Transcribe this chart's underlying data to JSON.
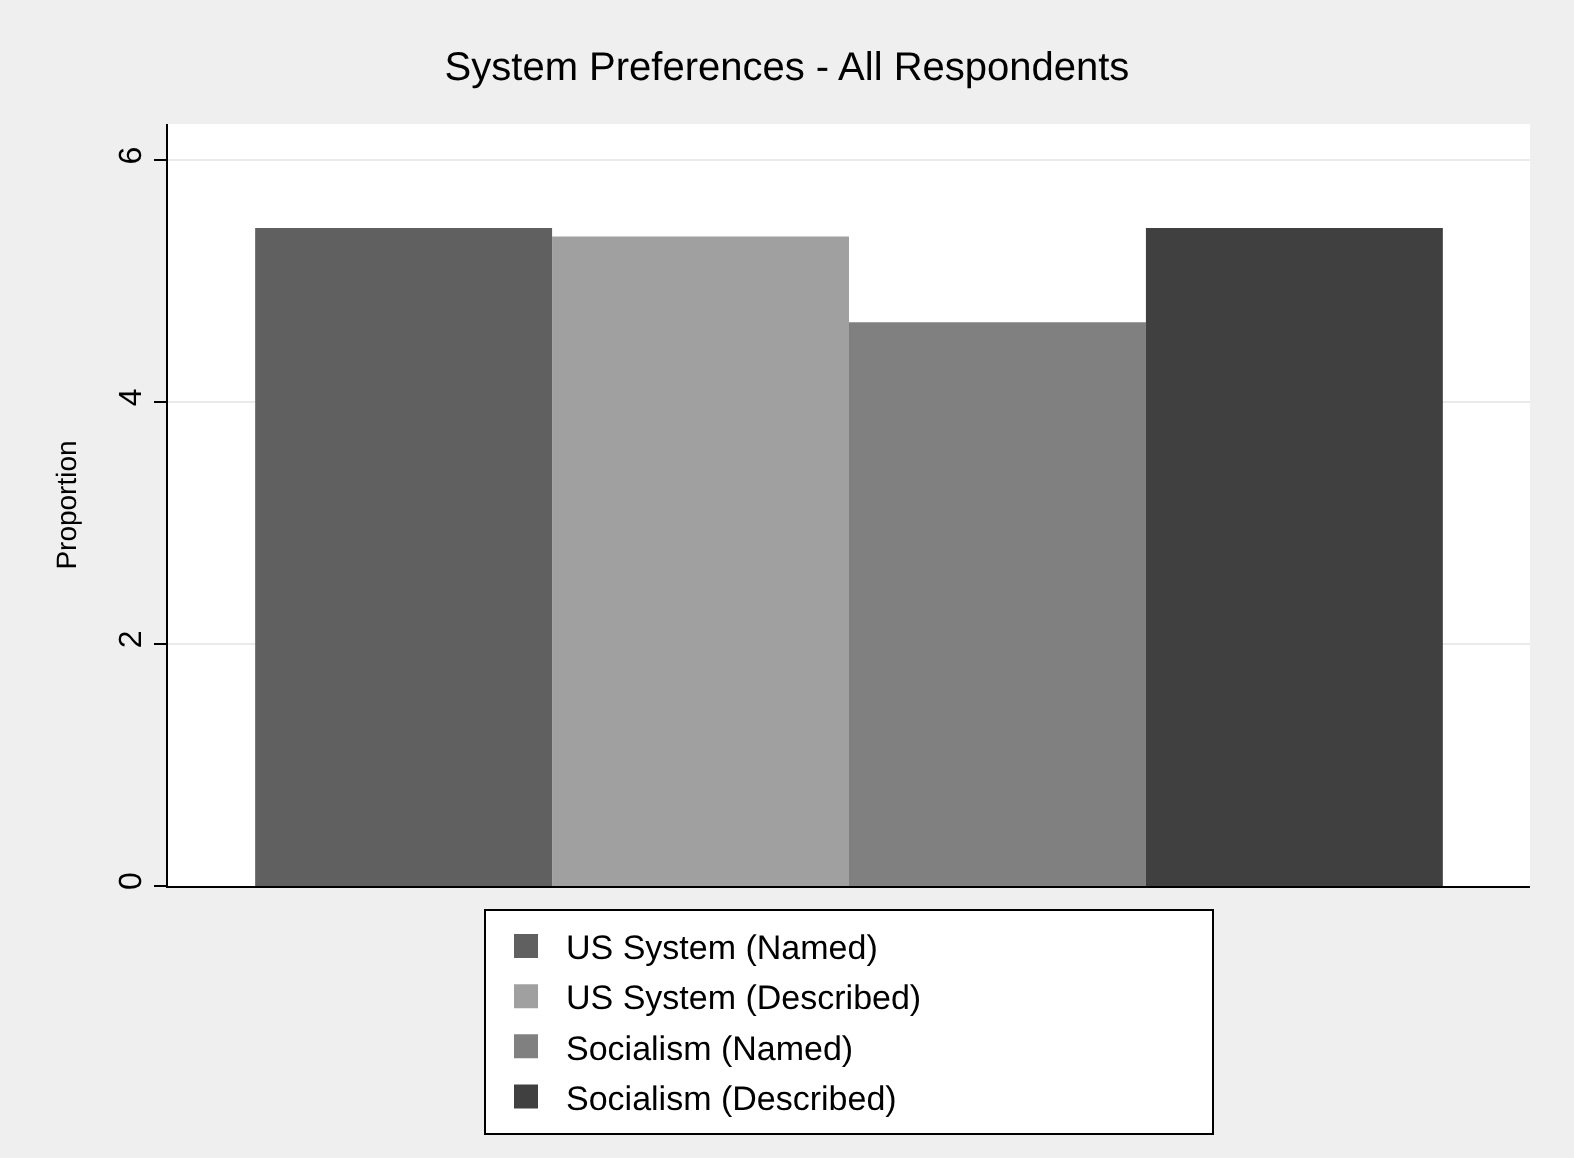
{
  "chart_data": {
    "type": "bar",
    "title": "System Preferences - All Respondents",
    "ylabel": "Proportion",
    "categories": [
      null
    ],
    "series": [
      {
        "name": "US System (Named)",
        "color": "#606060",
        "values": [
          5.44
        ]
      },
      {
        "name": "US System (Described)",
        "color": "#a0a0a0",
        "values": [
          5.37
        ]
      },
      {
        "name": "Socialism (Named)",
        "color": "#808080",
        "values": [
          4.66
        ]
      },
      {
        "name": "Socialism (Described)",
        "color": "#404040",
        "values": [
          5.44
        ]
      }
    ],
    "ylim": [
      0,
      6.3
    ],
    "yticks": [
      0,
      2,
      4,
      6
    ],
    "grid": "y",
    "legend": "bottom"
  }
}
